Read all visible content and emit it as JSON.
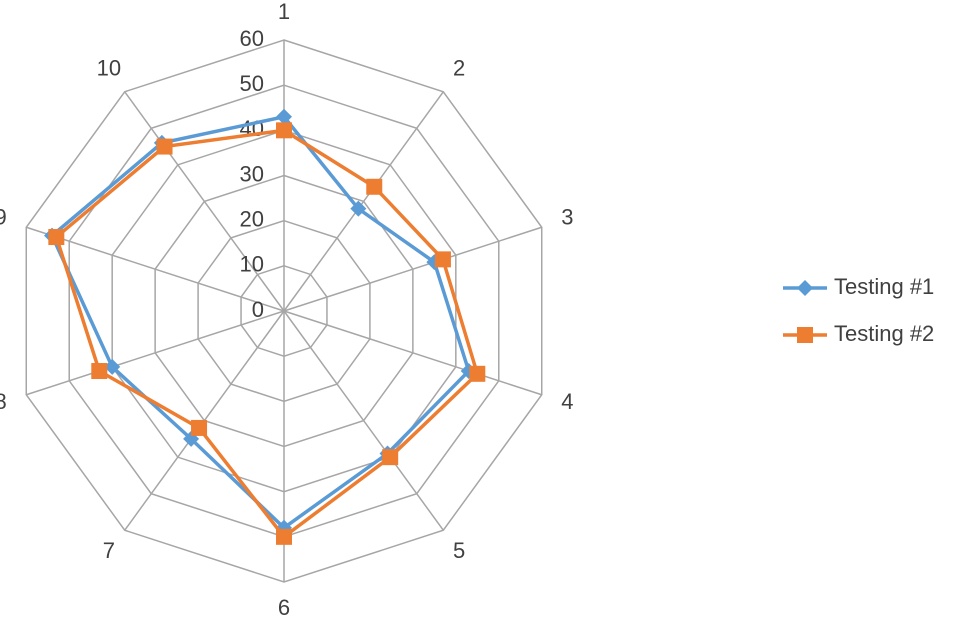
{
  "chart_data": {
    "type": "radar",
    "categories": [
      "1",
      "2",
      "3",
      "4",
      "5",
      "6",
      "7",
      "8",
      "9",
      "10"
    ],
    "rlim": [
      0,
      60
    ],
    "rticks": [
      0,
      10,
      20,
      30,
      40,
      50,
      60
    ],
    "grid": true,
    "legend": "right",
    "series": [
      {
        "name": "Testing #1",
        "color": "#5b9bd5",
        "marker": "diamond",
        "values": [
          43,
          28,
          35,
          43,
          39,
          48,
          35,
          40,
          54,
          46
        ]
      },
      {
        "name": "Testing #2",
        "color": "#ed7d31",
        "marker": "square",
        "values": [
          40,
          34,
          37,
          45,
          40,
          50,
          32,
          43,
          53,
          45
        ]
      }
    ]
  }
}
